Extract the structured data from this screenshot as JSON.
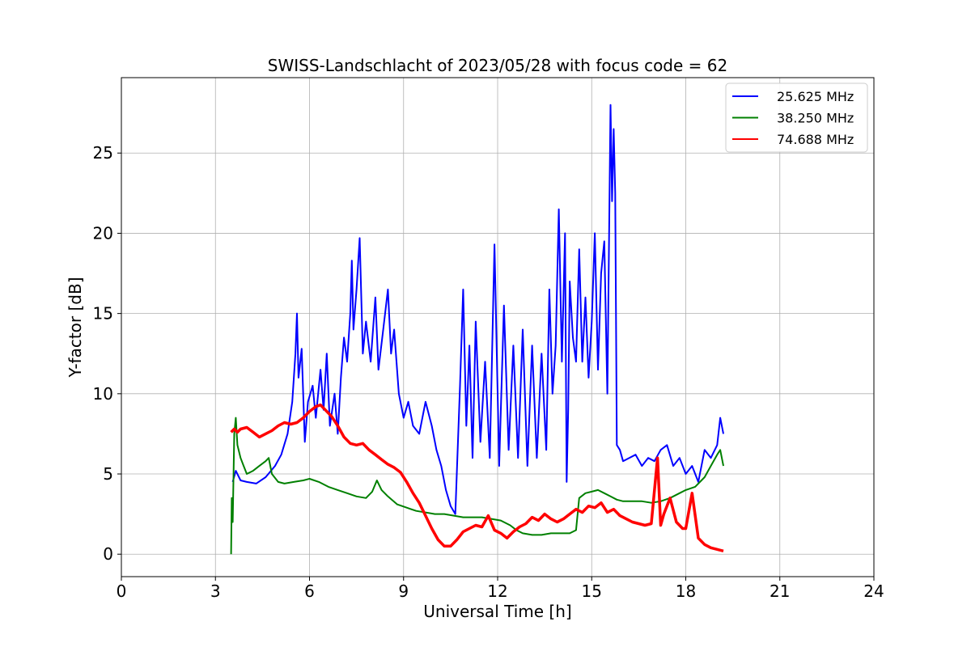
{
  "chart_data": {
    "type": "line",
    "title": "SWISS-Landschlacht of 2023/05/28 with focus code = 62",
    "xlabel": "Universal Time [h]",
    "ylabel": "Y-factor [dB]",
    "xlim": [
      0,
      24
    ],
    "ylim": [
      -1.4,
      29.7
    ],
    "xticks": [
      0,
      3,
      6,
      9,
      12,
      15,
      18,
      21,
      24
    ],
    "yticks": [
      0,
      5,
      10,
      15,
      20,
      25
    ],
    "xtick_labels": [
      "0",
      "3",
      "6",
      "9",
      "12",
      "15",
      "18",
      "21",
      "24"
    ],
    "ytick_labels": [
      "0",
      "5",
      "10",
      "15",
      "20",
      "25"
    ],
    "grid": true,
    "legend_position": "top-right",
    "series": [
      {
        "name": "25.625 MHz",
        "color": "#0000ff",
        "x": [
          3.55,
          3.65,
          3.8,
          4.0,
          4.3,
          4.6,
          4.9,
          5.1,
          5.3,
          5.45,
          5.55,
          5.6,
          5.65,
          5.75,
          5.85,
          5.95,
          6.1,
          6.2,
          6.35,
          6.45,
          6.55,
          6.65,
          6.8,
          6.9,
          7.0,
          7.1,
          7.2,
          7.3,
          7.35,
          7.4,
          7.5,
          7.6,
          7.7,
          7.8,
          7.95,
          8.1,
          8.2,
          8.35,
          8.5,
          8.6,
          8.7,
          8.85,
          9.0,
          9.15,
          9.3,
          9.5,
          9.7,
          9.9,
          10.05,
          10.2,
          10.35,
          10.5,
          10.65,
          10.8,
          10.9,
          11.0,
          11.1,
          11.2,
          11.3,
          11.45,
          11.6,
          11.75,
          11.9,
          12.05,
          12.2,
          12.35,
          12.5,
          12.65,
          12.8,
          12.95,
          13.1,
          13.25,
          13.4,
          13.55,
          13.65,
          13.75,
          13.85,
          13.95,
          14.05,
          14.15,
          14.2,
          14.25,
          14.3,
          14.4,
          14.5,
          14.6,
          14.7,
          14.8,
          14.9,
          15.0,
          15.1,
          15.2,
          15.3,
          15.4,
          15.5,
          15.6,
          15.65,
          15.7,
          15.75,
          15.8,
          15.9,
          16.0,
          16.2,
          16.4,
          16.6,
          16.8,
          17.0,
          17.2,
          17.4,
          17.6,
          17.8,
          18.0,
          18.2,
          18.4,
          18.6,
          18.8,
          19.0,
          19.1,
          19.2
        ],
        "y": [
          4.5,
          5.2,
          4.6,
          4.5,
          4.4,
          4.8,
          5.5,
          6.2,
          7.5,
          9.5,
          12.5,
          15.0,
          11.0,
          12.8,
          7.0,
          9.5,
          10.5,
          8.5,
          11.5,
          9.0,
          12.5,
          8.0,
          10.0,
          7.5,
          11.0,
          13.5,
          12.0,
          15.0,
          18.3,
          14.0,
          16.5,
          19.7,
          12.5,
          14.5,
          12.0,
          16.0,
          11.5,
          14.0,
          16.5,
          12.5,
          14.0,
          10.0,
          8.5,
          9.5,
          8.0,
          7.5,
          9.5,
          8.0,
          6.5,
          5.5,
          4.0,
          3.0,
          2.5,
          10.5,
          16.5,
          8.0,
          13.0,
          6.0,
          14.5,
          7.0,
          12.0,
          6.0,
          19.3,
          5.5,
          15.5,
          6.5,
          13.0,
          6.0,
          14.0,
          5.5,
          13.0,
          6.0,
          12.5,
          6.5,
          16.5,
          10.0,
          13.0,
          21.5,
          12.0,
          20.0,
          4.5,
          9.0,
          17.0,
          13.5,
          12.0,
          19.0,
          12.0,
          16.0,
          11.0,
          14.5,
          20.0,
          11.5,
          17.5,
          19.5,
          10.0,
          28.0,
          22.0,
          26.5,
          22.5,
          6.8,
          6.5,
          5.8,
          6.0,
          6.2,
          5.5,
          6.0,
          5.8,
          6.5,
          6.8,
          5.5,
          6.0,
          5.0,
          5.5,
          4.5,
          6.5,
          6.0,
          6.8,
          8.5,
          7.5
        ]
      },
      {
        "name": "38.250 MHz",
        "color": "#008000",
        "x": [
          3.5,
          3.52,
          3.55,
          3.6,
          3.65,
          3.7,
          3.8,
          3.9,
          4.0,
          4.2,
          4.4,
          4.6,
          4.7,
          4.8,
          5.0,
          5.2,
          5.5,
          5.8,
          6.0,
          6.3,
          6.6,
          6.9,
          7.2,
          7.5,
          7.8,
          8.0,
          8.15,
          8.3,
          8.5,
          8.8,
          9.1,
          9.4,
          9.7,
          10.0,
          10.3,
          10.6,
          10.9,
          11.2,
          11.5,
          11.8,
          12.1,
          12.4,
          12.6,
          12.8,
          13.1,
          13.4,
          13.7,
          14.0,
          14.3,
          14.5,
          14.6,
          14.8,
          15.0,
          15.2,
          15.4,
          15.6,
          15.8,
          16.0,
          16.3,
          16.6,
          16.9,
          17.2,
          17.5,
          17.8,
          18.0,
          18.3,
          18.6,
          18.8,
          19.0,
          19.1,
          19.2
        ],
        "y": [
          0.0,
          3.5,
          2.0,
          7.5,
          8.5,
          6.8,
          6.0,
          5.5,
          5.0,
          5.2,
          5.5,
          5.8,
          6.0,
          5.0,
          4.5,
          4.4,
          4.5,
          4.6,
          4.7,
          4.5,
          4.2,
          4.0,
          3.8,
          3.6,
          3.5,
          3.9,
          4.6,
          4.0,
          3.6,
          3.1,
          2.9,
          2.7,
          2.6,
          2.5,
          2.5,
          2.4,
          2.3,
          2.3,
          2.3,
          2.2,
          2.1,
          1.8,
          1.5,
          1.3,
          1.2,
          1.2,
          1.3,
          1.3,
          1.3,
          1.5,
          3.5,
          3.8,
          3.9,
          4.0,
          3.8,
          3.6,
          3.4,
          3.3,
          3.3,
          3.3,
          3.2,
          3.3,
          3.5,
          3.8,
          4.0,
          4.2,
          4.8,
          5.5,
          6.2,
          6.5,
          5.5
        ]
      },
      {
        "name": "74.688 MHz",
        "color": "#ff0000",
        "x": [
          3.5,
          3.6,
          3.7,
          3.8,
          4.0,
          4.2,
          4.4,
          4.6,
          4.8,
          5.0,
          5.2,
          5.4,
          5.6,
          5.8,
          6.0,
          6.2,
          6.35,
          6.5,
          6.7,
          6.9,
          7.1,
          7.3,
          7.5,
          7.7,
          7.9,
          8.1,
          8.3,
          8.5,
          8.7,
          8.9,
          9.1,
          9.3,
          9.5,
          9.7,
          9.9,
          10.1,
          10.3,
          10.5,
          10.7,
          10.9,
          11.1,
          11.3,
          11.5,
          11.7,
          11.9,
          12.1,
          12.3,
          12.5,
          12.7,
          12.9,
          13.1,
          13.3,
          13.5,
          13.7,
          13.9,
          14.1,
          14.3,
          14.5,
          14.7,
          14.9,
          15.1,
          15.3,
          15.5,
          15.7,
          15.9,
          16.1,
          16.3,
          16.5,
          16.7,
          16.9,
          17.1,
          17.2,
          17.3,
          17.5,
          17.7,
          17.9,
          18.0,
          18.2,
          18.4,
          18.6,
          18.8,
          19.0,
          19.2
        ],
        "y": [
          7.6,
          7.8,
          7.6,
          7.8,
          7.9,
          7.6,
          7.3,
          7.5,
          7.7,
          8.0,
          8.2,
          8.1,
          8.2,
          8.5,
          8.9,
          9.2,
          9.3,
          9.0,
          8.6,
          8.0,
          7.3,
          6.9,
          6.8,
          6.9,
          6.5,
          6.2,
          5.9,
          5.6,
          5.4,
          5.1,
          4.5,
          3.8,
          3.2,
          2.4,
          1.6,
          0.9,
          0.5,
          0.5,
          0.9,
          1.4,
          1.6,
          1.8,
          1.7,
          2.4,
          1.5,
          1.3,
          1.0,
          1.4,
          1.7,
          1.9,
          2.3,
          2.1,
          2.5,
          2.2,
          2.0,
          2.2,
          2.5,
          2.8,
          2.6,
          3.0,
          2.9,
          3.2,
          2.6,
          2.8,
          2.4,
          2.2,
          2.0,
          1.9,
          1.8,
          1.9,
          6.0,
          1.8,
          2.5,
          3.5,
          2.0,
          1.6,
          1.6,
          3.8,
          1.0,
          0.6,
          0.4,
          0.3,
          0.2
        ]
      }
    ]
  }
}
